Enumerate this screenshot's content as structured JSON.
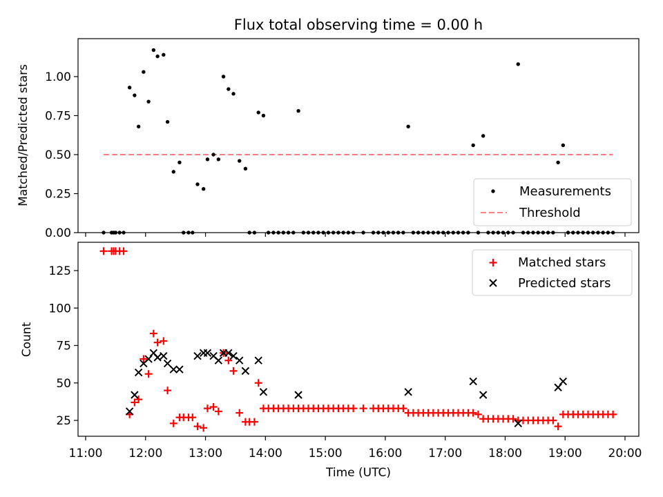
{
  "chart_data": [
    {
      "type": "scatter",
      "title": "Flux total observing time = 0.00 h",
      "xlabel": "",
      "ylabel": "Matched/Predicted stars",
      "xlim": [
        "11:00",
        "20:00"
      ],
      "ylim": [
        0.0,
        1.25
      ],
      "yticks": [
        "0.00",
        "0.25",
        "0.50",
        "0.75",
        "1.00"
      ],
      "legend_position": "lower-right",
      "series": [
        {
          "name": "Measurements",
          "marker": "dot",
          "color": "#000000",
          "points": [
            [
              "11:18",
              0.0
            ],
            [
              "11:26",
              0.0
            ],
            [
              "11:28",
              0.0
            ],
            [
              "11:30",
              0.0
            ],
            [
              "11:34",
              0.0
            ],
            [
              "11:38",
              0.0
            ],
            [
              "11:44",
              0.93
            ],
            [
              "11:49",
              0.88
            ],
            [
              "11:53",
              0.68
            ],
            [
              "11:58",
              1.03
            ],
            [
              "12:03",
              0.84
            ],
            [
              "12:08",
              1.17
            ],
            [
              "12:12",
              1.13
            ],
            [
              "12:18",
              1.14
            ],
            [
              "12:22",
              0.71
            ],
            [
              "12:28",
              0.39
            ],
            [
              "12:34",
              0.45
            ],
            [
              "12:38",
              0.0
            ],
            [
              "12:43",
              0.0
            ],
            [
              "12:47",
              0.0
            ],
            [
              "12:52",
              0.31
            ],
            [
              "12:58",
              0.28
            ],
            [
              "13:02",
              0.47
            ],
            [
              "13:08",
              0.5
            ],
            [
              "13:13",
              0.47
            ],
            [
              "13:18",
              1.0
            ],
            [
              "13:23",
              0.92
            ],
            [
              "13:28",
              0.89
            ],
            [
              "13:34",
              0.46
            ],
            [
              "13:40",
              0.41
            ],
            [
              "13:44",
              0.0
            ],
            [
              "13:49",
              0.0
            ],
            [
              "13:53",
              0.77
            ],
            [
              "13:58",
              0.75
            ],
            [
              "14:03",
              0.0
            ],
            [
              "14:08",
              0.0
            ],
            [
              "14:13",
              0.0
            ],
            [
              "14:18",
              0.0
            ],
            [
              "14:23",
              0.0
            ],
            [
              "14:28",
              0.0
            ],
            [
              "14:33",
              0.78
            ],
            [
              "14:38",
              0.0
            ],
            [
              "14:43",
              0.0
            ],
            [
              "14:48",
              0.0
            ],
            [
              "14:53",
              0.0
            ],
            [
              "14:58",
              0.0
            ],
            [
              "15:03",
              0.0
            ],
            [
              "15:08",
              0.0
            ],
            [
              "15:13",
              0.0
            ],
            [
              "15:18",
              0.0
            ],
            [
              "15:23",
              0.0
            ],
            [
              "15:28",
              0.0
            ],
            [
              "15:38",
              0.0
            ],
            [
              "15:48",
              0.0
            ],
            [
              "15:53",
              0.0
            ],
            [
              "15:58",
              0.0
            ],
            [
              "16:03",
              0.0
            ],
            [
              "16:08",
              0.0
            ],
            [
              "16:13",
              0.0
            ],
            [
              "16:18",
              0.0
            ],
            [
              "16:23",
              0.68
            ],
            [
              "16:28",
              0.0
            ],
            [
              "16:33",
              0.0
            ],
            [
              "16:38",
              0.0
            ],
            [
              "16:43",
              0.0
            ],
            [
              "16:48",
              0.0
            ],
            [
              "16:53",
              0.0
            ],
            [
              "16:58",
              0.0
            ],
            [
              "17:03",
              0.0
            ],
            [
              "17:08",
              0.0
            ],
            [
              "17:13",
              0.0
            ],
            [
              "17:18",
              0.0
            ],
            [
              "17:23",
              0.0
            ],
            [
              "17:28",
              0.56
            ],
            [
              "17:33",
              0.0
            ],
            [
              "17:38",
              0.62
            ],
            [
              "17:43",
              0.0
            ],
            [
              "17:48",
              0.0
            ],
            [
              "17:53",
              0.0
            ],
            [
              "17:58",
              0.0
            ],
            [
              "18:03",
              0.0
            ],
            [
              "18:08",
              0.0
            ],
            [
              "18:13",
              1.08
            ],
            [
              "18:18",
              0.0
            ],
            [
              "18:23",
              0.0
            ],
            [
              "18:28",
              0.0
            ],
            [
              "18:33",
              0.0
            ],
            [
              "18:38",
              0.0
            ],
            [
              "18:43",
              0.0
            ],
            [
              "18:48",
              0.0
            ],
            [
              "18:53",
              0.45
            ],
            [
              "18:58",
              0.56
            ],
            [
              "19:03",
              0.0
            ],
            [
              "19:08",
              0.0
            ],
            [
              "19:13",
              0.0
            ],
            [
              "19:18",
              0.0
            ],
            [
              "19:23",
              0.0
            ],
            [
              "19:28",
              0.0
            ],
            [
              "19:33",
              0.0
            ],
            [
              "19:38",
              0.0
            ],
            [
              "19:43",
              0.0
            ],
            [
              "19:48",
              0.0
            ]
          ]
        },
        {
          "name": "Threshold",
          "type": "line",
          "style": "dashed",
          "color": "#ff7f7f",
          "points": [
            [
              "11:18",
              0.5
            ],
            [
              "19:48",
              0.5
            ]
          ]
        }
      ]
    },
    {
      "type": "scatter",
      "title": "",
      "xlabel": "Time (UTC)",
      "ylabel": "Count",
      "xlim": [
        "11:00",
        "20:00"
      ],
      "ylim": [
        14,
        143
      ],
      "xticks": [
        "11:00",
        "12:00",
        "13:00",
        "14:00",
        "15:00",
        "16:00",
        "17:00",
        "18:00",
        "19:00",
        "20:00"
      ],
      "yticks": [
        "25",
        "50",
        "75",
        "100",
        "125"
      ],
      "legend_position": "top-right",
      "series": [
        {
          "name": "Matched stars",
          "marker": "plus",
          "color": "#ff0000",
          "points": [
            [
              "11:18",
              138
            ],
            [
              "11:26",
              138
            ],
            [
              "11:28",
              138
            ],
            [
              "11:30",
              138
            ],
            [
              "11:34",
              138
            ],
            [
              "11:38",
              138
            ],
            [
              "11:44",
              29
            ],
            [
              "11:49",
              37
            ],
            [
              "11:53",
              39
            ],
            [
              "11:58",
              66
            ],
            [
              "12:03",
              56
            ],
            [
              "12:08",
              83
            ],
            [
              "12:12",
              77
            ],
            [
              "12:18",
              78
            ],
            [
              "12:22",
              45
            ],
            [
              "12:28",
              23
            ],
            [
              "12:34",
              27
            ],
            [
              "12:38",
              27
            ],
            [
              "12:43",
              27
            ],
            [
              "12:47",
              27
            ],
            [
              "12:52",
              21
            ],
            [
              "12:58",
              20
            ],
            [
              "13:02",
              33
            ],
            [
              "13:08",
              34
            ],
            [
              "13:13",
              31
            ],
            [
              "13:18",
              70
            ],
            [
              "13:23",
              65
            ],
            [
              "13:28",
              58
            ],
            [
              "13:34",
              30
            ],
            [
              "13:40",
              24
            ],
            [
              "13:44",
              24
            ],
            [
              "13:49",
              24
            ],
            [
              "13:53",
              50
            ],
            [
              "13:58",
              33
            ],
            [
              "14:03",
              33
            ],
            [
              "14:08",
              33
            ],
            [
              "14:13",
              33
            ],
            [
              "14:18",
              33
            ],
            [
              "14:23",
              33
            ],
            [
              "14:28",
              33
            ],
            [
              "14:33",
              33
            ],
            [
              "14:38",
              33
            ],
            [
              "14:43",
              33
            ],
            [
              "14:48",
              33
            ],
            [
              "14:53",
              33
            ],
            [
              "14:58",
              33
            ],
            [
              "15:03",
              33
            ],
            [
              "15:08",
              33
            ],
            [
              "15:13",
              33
            ],
            [
              "15:18",
              33
            ],
            [
              "15:23",
              33
            ],
            [
              "15:28",
              33
            ],
            [
              "15:38",
              33
            ],
            [
              "15:48",
              33
            ],
            [
              "15:53",
              33
            ],
            [
              "15:58",
              33
            ],
            [
              "16:03",
              33
            ],
            [
              "16:08",
              33
            ],
            [
              "16:13",
              33
            ],
            [
              "16:18",
              33
            ],
            [
              "16:23",
              30
            ],
            [
              "16:28",
              30
            ],
            [
              "16:33",
              30
            ],
            [
              "16:38",
              30
            ],
            [
              "16:43",
              30
            ],
            [
              "16:48",
              30
            ],
            [
              "16:53",
              30
            ],
            [
              "16:58",
              30
            ],
            [
              "17:03",
              30
            ],
            [
              "17:08",
              30
            ],
            [
              "17:13",
              30
            ],
            [
              "17:18",
              30
            ],
            [
              "17:23",
              30
            ],
            [
              "17:28",
              30
            ],
            [
              "17:33",
              29
            ],
            [
              "17:38",
              26
            ],
            [
              "17:43",
              26
            ],
            [
              "17:48",
              26
            ],
            [
              "17:53",
              26
            ],
            [
              "17:58",
              26
            ],
            [
              "18:03",
              26
            ],
            [
              "18:08",
              26
            ],
            [
              "18:13",
              25
            ],
            [
              "18:18",
              25
            ],
            [
              "18:23",
              25
            ],
            [
              "18:28",
              25
            ],
            [
              "18:33",
              25
            ],
            [
              "18:38",
              25
            ],
            [
              "18:43",
              25
            ],
            [
              "18:48",
              25
            ],
            [
              "18:53",
              21
            ],
            [
              "18:58",
              29
            ],
            [
              "19:03",
              29
            ],
            [
              "19:08",
              29
            ],
            [
              "19:13",
              29
            ],
            [
              "19:18",
              29
            ],
            [
              "19:23",
              29
            ],
            [
              "19:28",
              29
            ],
            [
              "19:33",
              29
            ],
            [
              "19:38",
              29
            ],
            [
              "19:43",
              29
            ],
            [
              "19:48",
              29
            ]
          ]
        },
        {
          "name": "Predicted stars",
          "marker": "x",
          "color": "#000000",
          "points": [
            [
              "11:44",
              31
            ],
            [
              "11:49",
              42
            ],
            [
              "11:53",
              57
            ],
            [
              "11:58",
              63
            ],
            [
              "12:03",
              66
            ],
            [
              "12:08",
              70
            ],
            [
              "12:12",
              67
            ],
            [
              "12:18",
              68
            ],
            [
              "12:22",
              63
            ],
            [
              "12:28",
              59
            ],
            [
              "12:34",
              59
            ],
            [
              "12:52",
              68
            ],
            [
              "12:58",
              70
            ],
            [
              "13:02",
              70
            ],
            [
              "13:08",
              68
            ],
            [
              "13:13",
              65
            ],
            [
              "13:18",
              70
            ],
            [
              "13:23",
              70
            ],
            [
              "13:28",
              68
            ],
            [
              "13:34",
              65
            ],
            [
              "13:40",
              58
            ],
            [
              "13:53",
              65
            ],
            [
              "13:58",
              44
            ],
            [
              "14:33",
              42
            ],
            [
              "16:23",
              44
            ],
            [
              "17:28",
              51
            ],
            [
              "17:38",
              42
            ],
            [
              "18:13",
              23
            ],
            [
              "18:53",
              47
            ],
            [
              "18:58",
              51
            ]
          ]
        }
      ]
    }
  ]
}
